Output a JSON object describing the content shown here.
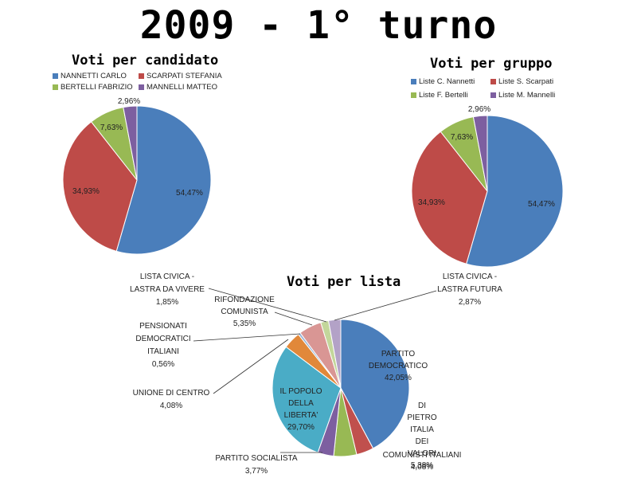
{
  "page_title": "2009 - 1° turno",
  "colors": {
    "blue": "#4a7ebb",
    "red": "#be4b48",
    "green": "#98b954",
    "purple": "#7d5fa0",
    "teal": "#4aacc6",
    "orange": "#e1883a",
    "pink": "#d99694",
    "lightgreen": "#c3d69b",
    "lavender": "#b3a2c7",
    "darkred": "#c0504d"
  },
  "chart_data": [
    {
      "type": "pie",
      "title": "Voti per candidato",
      "legend": "top",
      "slices": [
        {
          "label": "NANNETTI CARLO",
          "value": 54.47,
          "display": "54,47%",
          "color": "#4a7ebb"
        },
        {
          "label": "SCARPATI STEFANIA",
          "value": 34.93,
          "display": "34,93%",
          "color": "#be4b48"
        },
        {
          "label": "BERTELLI FABRIZIO",
          "value": 7.63,
          "display": "7,63%",
          "color": "#98b954"
        },
        {
          "label": "MANNELLI MATTEO",
          "value": 2.96,
          "display": "2,96%",
          "color": "#7d5fa0"
        }
      ]
    },
    {
      "type": "pie",
      "title": "Voti per gruppo",
      "legend": "top",
      "slices": [
        {
          "label": "Liste C. Nannetti",
          "value": 54.47,
          "display": "54,47%",
          "color": "#4a7ebb"
        },
        {
          "label": "Liste S. Scarpati",
          "value": 34.93,
          "display": "34,93%",
          "color": "#be4b48"
        },
        {
          "label": "Liste F. Bertelli",
          "value": 7.63,
          "display": "7,63%",
          "color": "#98b954"
        },
        {
          "label": "Liste M. Mannelli",
          "value": 2.96,
          "display": "2,96%",
          "color": "#7d5fa0"
        }
      ]
    },
    {
      "type": "pie",
      "title": "Voti per lista",
      "legend": "none",
      "slices": [
        {
          "label": "PARTITO DEMOCRATICO",
          "value": 42.05,
          "display": "42,05%",
          "color": "#4a7ebb"
        },
        {
          "label": "COMUNISTI ITALIANI",
          "value": 4.08,
          "display": "4,08%",
          "color": "#c0504d"
        },
        {
          "label": "DI PIETRO ITALIA DEI VALORI",
          "value": 5.38,
          "display": "5,38%",
          "color": "#98b954"
        },
        {
          "label": "PARTITO SOCIALISTA",
          "value": 3.77,
          "display": "3,77%",
          "color": "#7d5fa0"
        },
        {
          "label": "IL POPOLO DELLA LIBERTA'",
          "value": 29.7,
          "display": "29,70%",
          "color": "#4aacc6"
        },
        {
          "label": "UNIONE DI CENTRO",
          "value": 4.08,
          "display": "4,08%",
          "color": "#e1883a"
        },
        {
          "label": "PENSIONATI DEMOCRATICI ITALIANI",
          "value": 0.56,
          "display": "0,56%",
          "color": "#95b3d7"
        },
        {
          "label": "RIFONDAZIONE COMUNISTA",
          "value": 5.35,
          "display": "5,35%",
          "color": "#d99694"
        },
        {
          "label": "LISTA CIVICA - LASTRA DA VIVERE",
          "value": 1.85,
          "display": "1,85%",
          "color": "#c3d69b"
        },
        {
          "label": "LISTA CIVICA - LASTRA FUTURA",
          "value": 2.87,
          "display": "2,87%",
          "color": "#b3a2c7"
        }
      ]
    }
  ]
}
